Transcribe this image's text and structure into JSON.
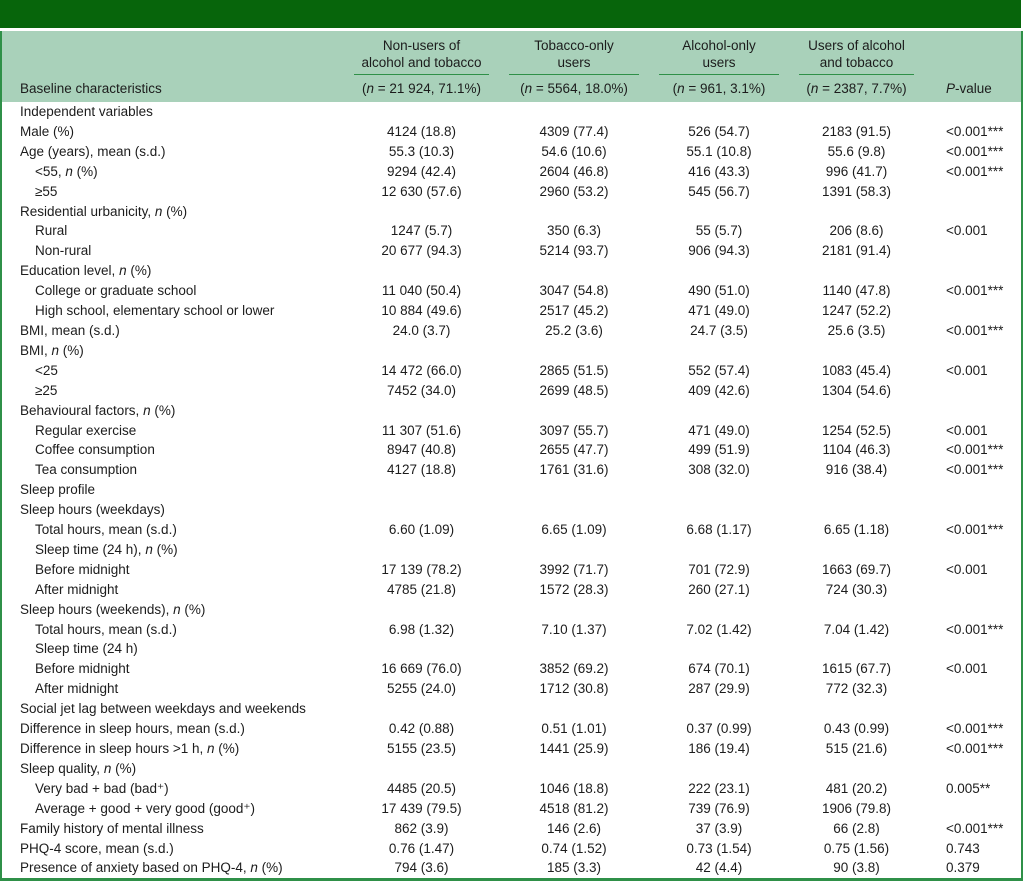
{
  "table": {
    "colors": {
      "dark_green": "#07650b",
      "light_green": "#a9d1ba",
      "line_green": "#2f9048"
    },
    "header": {
      "row_label": "Baseline characteristics",
      "pvalue_label": "P-value",
      "groups": [
        {
          "line1": "Non-users of",
          "line2": "alcohol and tobacco",
          "subtitle": "(n = 21 924, 71.1%)"
        },
        {
          "line1": "Tobacco-only",
          "line2": "users",
          "subtitle": "(n = 5564, 18.0%)"
        },
        {
          "line1": "Alcohol-only",
          "line2": "users",
          "subtitle": "(n = 961, 3.1%)"
        },
        {
          "line1": "Users of alcohol",
          "line2": "and tobacco",
          "subtitle": "(n = 2387, 7.7%)"
        }
      ]
    },
    "rows": [
      {
        "label": "Independent variables",
        "indent": false,
        "values": [
          "",
          "",
          "",
          ""
        ],
        "p": ""
      },
      {
        "label": "Male (%)",
        "indent": false,
        "values": [
          "4124 (18.8)",
          "4309 (77.4)",
          "526 (54.7)",
          "2183 (91.5)"
        ],
        "p": "<0.001***"
      },
      {
        "label": "Age (years), mean (s.d.)",
        "indent": false,
        "values": [
          "55.3 (10.3)",
          "54.6 (10.6)",
          "55.1 (10.8)",
          "55.6 (9.8)"
        ],
        "p": "<0.001***"
      },
      {
        "label": "<55, n (%)",
        "indent": true,
        "values": [
          "9294 (42.4)",
          "2604 (46.8)",
          "416 (43.3)",
          "996 (41.7)"
        ],
        "p": "<0.001***"
      },
      {
        "label": "≥55",
        "indent": true,
        "values": [
          "12 630 (57.6)",
          "2960 (53.2)",
          "545 (56.7)",
          "1391 (58.3)"
        ],
        "p": ""
      },
      {
        "label": "Residential urbanicity, n (%)",
        "indent": false,
        "values": [
          "",
          "",
          "",
          ""
        ],
        "p": ""
      },
      {
        "label": "Rural",
        "indent": true,
        "values": [
          "1247 (5.7)",
          "350 (6.3)",
          "55 (5.7)",
          "206 (8.6)"
        ],
        "p": "<0.001"
      },
      {
        "label": "Non-rural",
        "indent": true,
        "values": [
          "20 677 (94.3)",
          "5214 (93.7)",
          "906 (94.3)",
          "2181 (91.4)"
        ],
        "p": ""
      },
      {
        "label": "Education level, n (%)",
        "indent": false,
        "values": [
          "",
          "",
          "",
          ""
        ],
        "p": ""
      },
      {
        "label": "College or graduate school",
        "indent": true,
        "values": [
          "11 040 (50.4)",
          "3047 (54.8)",
          "490 (51.0)",
          "1140 (47.8)"
        ],
        "p": "<0.001***"
      },
      {
        "label": "High school, elementary school or lower",
        "indent": true,
        "values": [
          "10 884 (49.6)",
          "2517 (45.2)",
          "471 (49.0)",
          "1247 (52.2)"
        ],
        "p": ""
      },
      {
        "label": "BMI, mean (s.d.)",
        "indent": false,
        "values": [
          "24.0 (3.7)",
          "25.2 (3.6)",
          "24.7 (3.5)",
          "25.6 (3.5)"
        ],
        "p": "<0.001***"
      },
      {
        "label": "BMI, n (%)",
        "indent": false,
        "values": [
          "",
          "",
          "",
          ""
        ],
        "p": ""
      },
      {
        "label": "<25",
        "indent": true,
        "values": [
          "14 472 (66.0)",
          "2865 (51.5)",
          "552 (57.4)",
          "1083 (45.4)"
        ],
        "p": "<0.001"
      },
      {
        "label": "≥25",
        "indent": true,
        "values": [
          "7452 (34.0)",
          "2699 (48.5)",
          "409 (42.6)",
          "1304 (54.6)"
        ],
        "p": ""
      },
      {
        "label": "Behavioural factors, n (%)",
        "indent": false,
        "values": [
          "",
          "",
          "",
          ""
        ],
        "p": ""
      },
      {
        "label": "Regular exercise",
        "indent": true,
        "values": [
          "11 307 (51.6)",
          "3097 (55.7)",
          "471 (49.0)",
          "1254 (52.5)"
        ],
        "p": "<0.001"
      },
      {
        "label": "Coffee consumption",
        "indent": true,
        "values": [
          "8947 (40.8)",
          "2655 (47.7)",
          "499 (51.9)",
          "1104 (46.3)"
        ],
        "p": "<0.001***"
      },
      {
        "label": "Tea consumption",
        "indent": true,
        "values": [
          "4127 (18.8)",
          "1761 (31.6)",
          "308 (32.0)",
          "916 (38.4)"
        ],
        "p": "<0.001***"
      },
      {
        "label": "Sleep profile",
        "indent": false,
        "values": [
          "",
          "",
          "",
          ""
        ],
        "p": ""
      },
      {
        "label": "Sleep hours (weekdays)",
        "indent": false,
        "values": [
          "",
          "",
          "",
          ""
        ],
        "p": ""
      },
      {
        "label": "Total hours, mean (s.d.)",
        "indent": true,
        "values": [
          "6.60 (1.09)",
          "6.65 (1.09)",
          "6.68 (1.17)",
          "6.65 (1.18)"
        ],
        "p": "<0.001***"
      },
      {
        "label": "Sleep time (24 h), n (%)",
        "indent": true,
        "values": [
          "",
          "",
          "",
          ""
        ],
        "p": ""
      },
      {
        "label": "Before midnight",
        "indent": true,
        "values": [
          "17 139 (78.2)",
          "3992 (71.7)",
          "701 (72.9)",
          "1663 (69.7)"
        ],
        "p": "<0.001"
      },
      {
        "label": "After midnight",
        "indent": true,
        "values": [
          "4785 (21.8)",
          "1572 (28.3)",
          "260 (27.1)",
          "724 (30.3)"
        ],
        "p": ""
      },
      {
        "label": "Sleep hours (weekends), n (%)",
        "indent": false,
        "values": [
          "",
          "",
          "",
          ""
        ],
        "p": ""
      },
      {
        "label": "Total hours, mean (s.d.)",
        "indent": true,
        "values": [
          "6.98 (1.32)",
          "7.10 (1.37)",
          "7.02 (1.42)",
          "7.04 (1.42)"
        ],
        "p": "<0.001***"
      },
      {
        "label": "Sleep time (24 h)",
        "indent": true,
        "values": [
          "",
          "",
          "",
          ""
        ],
        "p": ""
      },
      {
        "label": "Before midnight",
        "indent": true,
        "values": [
          "16 669 (76.0)",
          "3852 (69.2)",
          "674 (70.1)",
          "1615 (67.7)"
        ],
        "p": "<0.001"
      },
      {
        "label": "After midnight",
        "indent": true,
        "values": [
          "5255 (24.0)",
          "1712 (30.8)",
          "287 (29.9)",
          "772 (32.3)"
        ],
        "p": ""
      },
      {
        "label": "Social jet lag between weekdays and weekends",
        "indent": false,
        "values": [
          "",
          "",
          "",
          ""
        ],
        "p": ""
      },
      {
        "label": "Difference in sleep hours, mean (s.d.)",
        "indent": false,
        "values": [
          "0.42 (0.88)",
          "0.51 (1.01)",
          "0.37 (0.99)",
          "0.43 (0.99)"
        ],
        "p": "<0.001***"
      },
      {
        "label": "Difference in sleep hours >1 h, n (%)",
        "indent": false,
        "values": [
          "5155 (23.5)",
          "1441 (25.9)",
          "186 (19.4)",
          "515 (21.6)"
        ],
        "p": "<0.001***"
      },
      {
        "label": "Sleep quality, n (%)",
        "indent": false,
        "values": [
          "",
          "",
          "",
          ""
        ],
        "p": ""
      },
      {
        "label": "Very bad + bad (bad⁺)",
        "indent": true,
        "values": [
          "4485 (20.5)",
          "1046 (18.8)",
          "222 (23.1)",
          "481 (20.2)"
        ],
        "p": "0.005**"
      },
      {
        "label": "Average + good + very good (good⁺)",
        "indent": true,
        "values": [
          "17 439 (79.5)",
          "4518 (81.2)",
          "739 (76.9)",
          "1906 (79.8)"
        ],
        "p": ""
      },
      {
        "label": "Family history of mental illness",
        "indent": false,
        "values": [
          "862 (3.9)",
          "146 (2.6)",
          "37 (3.9)",
          "66 (2.8)"
        ],
        "p": "<0.001***"
      },
      {
        "label": "PHQ-4 score, mean (s.d.)",
        "indent": false,
        "values": [
          "0.76 (1.47)",
          "0.74 (1.52)",
          "0.73 (1.54)",
          "0.75 (1.56)"
        ],
        "p": "0.743"
      },
      {
        "label": "Presence of anxiety based on PHQ-4, n (%)",
        "indent": false,
        "values": [
          "794 (3.6)",
          "185 (3.3)",
          "42 (4.4)",
          "90 (3.8)"
        ],
        "p": "0.379"
      }
    ]
  }
}
